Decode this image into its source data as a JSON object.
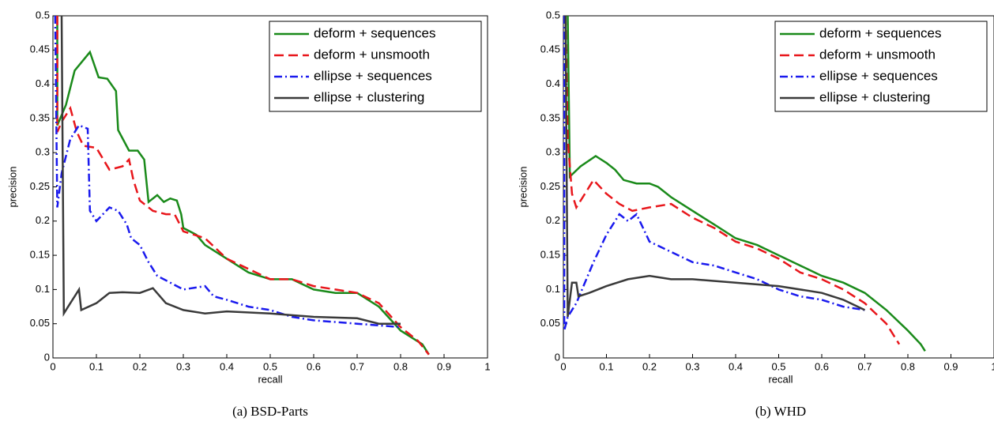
{
  "chart_data": [
    {
      "type": "line",
      "caption": "(a)  BSD-Parts",
      "xlabel": "recall",
      "ylabel": "precision",
      "xlim": [
        0,
        1
      ],
      "ylim": [
        0,
        0.5
      ],
      "xticks": [
        0,
        0.1,
        0.2,
        0.3,
        0.4,
        0.5,
        0.6,
        0.7,
        0.8,
        0.9,
        1
      ],
      "yticks": [
        0,
        0.05,
        0.1,
        0.15,
        0.2,
        0.25,
        0.3,
        0.35,
        0.4,
        0.45,
        0.5
      ],
      "legend": "upper right",
      "series": [
        {
          "name": "deform + sequences",
          "color": "#1a8a1a",
          "dash": "solid",
          "x": [
            0.01,
            0.01,
            0.03,
            0.05,
            0.085,
            0.105,
            0.125,
            0.145,
            0.15,
            0.175,
            0.195,
            0.21,
            0.22,
            0.24,
            0.255,
            0.27,
            0.285,
            0.295,
            0.3,
            0.33,
            0.35,
            0.4,
            0.45,
            0.5,
            0.55,
            0.6,
            0.65,
            0.7,
            0.75,
            0.8,
            0.85,
            0.865
          ],
          "values": [
            0.5,
            0.34,
            0.37,
            0.42,
            0.447,
            0.41,
            0.408,
            0.39,
            0.333,
            0.303,
            0.303,
            0.29,
            0.228,
            0.238,
            0.228,
            0.233,
            0.23,
            0.21,
            0.19,
            0.18,
            0.165,
            0.145,
            0.125,
            0.115,
            0.115,
            0.1,
            0.095,
            0.095,
            0.075,
            0.04,
            0.02,
            0.005
          ]
        },
        {
          "name": "deform + unsmooth",
          "color": "#e8161b",
          "dash": "dashed",
          "x": [
            0.01,
            0.01,
            0.02,
            0.04,
            0.055,
            0.07,
            0.1,
            0.13,
            0.16,
            0.175,
            0.185,
            0.2,
            0.23,
            0.26,
            0.28,
            0.3,
            0.35,
            0.4,
            0.45,
            0.5,
            0.55,
            0.6,
            0.65,
            0.7,
            0.75,
            0.8,
            0.84,
            0.865
          ],
          "values": [
            0.5,
            0.33,
            0.345,
            0.365,
            0.33,
            0.31,
            0.307,
            0.275,
            0.28,
            0.29,
            0.26,
            0.23,
            0.215,
            0.21,
            0.21,
            0.185,
            0.175,
            0.145,
            0.13,
            0.115,
            0.115,
            0.105,
            0.1,
            0.095,
            0.08,
            0.045,
            0.025,
            0.005
          ]
        },
        {
          "name": "ellipse + sequences",
          "color": "#1a1aee",
          "dash": "dashdot",
          "x": [
            0.005,
            0.01,
            0.02,
            0.04,
            0.06,
            0.08,
            0.085,
            0.1,
            0.13,
            0.15,
            0.17,
            0.18,
            0.2,
            0.22,
            0.24,
            0.27,
            0.3,
            0.35,
            0.37,
            0.4,
            0.45,
            0.5,
            0.55,
            0.6,
            0.7,
            0.8
          ],
          "values": [
            0.5,
            0.22,
            0.27,
            0.32,
            0.34,
            0.335,
            0.215,
            0.2,
            0.22,
            0.215,
            0.195,
            0.175,
            0.165,
            0.14,
            0.12,
            0.11,
            0.1,
            0.105,
            0.09,
            0.085,
            0.075,
            0.07,
            0.06,
            0.055,
            0.05,
            0.045
          ]
        },
        {
          "name": "ellipse + clustering",
          "color": "#3a3a3a",
          "dash": "solid",
          "x": [
            0.02,
            0.025,
            0.04,
            0.06,
            0.065,
            0.1,
            0.13,
            0.16,
            0.2,
            0.23,
            0.26,
            0.3,
            0.35,
            0.4,
            0.5,
            0.6,
            0.7,
            0.75,
            0.8
          ],
          "values": [
            0.5,
            0.065,
            0.08,
            0.1,
            0.07,
            0.08,
            0.095,
            0.096,
            0.095,
            0.102,
            0.08,
            0.07,
            0.065,
            0.068,
            0.065,
            0.06,
            0.058,
            0.05,
            0.05
          ]
        }
      ]
    },
    {
      "type": "line",
      "caption": "(b)  WHD",
      "xlabel": "recall",
      "ylabel": "precision",
      "xlim": [
        0,
        1
      ],
      "ylim": [
        0,
        0.5
      ],
      "xticks": [
        0,
        0.1,
        0.2,
        0.3,
        0.4,
        0.5,
        0.6,
        0.7,
        0.8,
        0.9,
        1
      ],
      "yticks": [
        0,
        0.05,
        0.1,
        0.15,
        0.2,
        0.25,
        0.3,
        0.35,
        0.4,
        0.45,
        0.5
      ],
      "legend": "upper right",
      "series": [
        {
          "name": "deform + sequences",
          "color": "#1a8a1a",
          "dash": "solid",
          "x": [
            0.01,
            0.015,
            0.04,
            0.075,
            0.1,
            0.12,
            0.14,
            0.17,
            0.2,
            0.22,
            0.25,
            0.3,
            0.35,
            0.4,
            0.45,
            0.5,
            0.55,
            0.6,
            0.65,
            0.7,
            0.75,
            0.8,
            0.83,
            0.84
          ],
          "values": [
            0.5,
            0.265,
            0.28,
            0.295,
            0.285,
            0.275,
            0.26,
            0.255,
            0.255,
            0.25,
            0.235,
            0.215,
            0.195,
            0.175,
            0.165,
            0.15,
            0.135,
            0.12,
            0.11,
            0.095,
            0.07,
            0.04,
            0.02,
            0.01
          ]
        },
        {
          "name": "deform + unsmooth",
          "color": "#e8161b",
          "dash": "dashed",
          "x": [
            0.005,
            0.01,
            0.02,
            0.03,
            0.05,
            0.07,
            0.1,
            0.13,
            0.16,
            0.2,
            0.25,
            0.3,
            0.35,
            0.4,
            0.45,
            0.5,
            0.55,
            0.6,
            0.65,
            0.7,
            0.75,
            0.78
          ],
          "values": [
            0.5,
            0.32,
            0.24,
            0.22,
            0.24,
            0.26,
            0.24,
            0.225,
            0.215,
            0.22,
            0.225,
            0.205,
            0.19,
            0.17,
            0.16,
            0.145,
            0.125,
            0.115,
            0.1,
            0.08,
            0.05,
            0.02
          ]
        },
        {
          "name": "ellipse + sequences",
          "color": "#1a1aee",
          "dash": "dashdot",
          "x": [
            0.002,
            0.002,
            0.01,
            0.03,
            0.07,
            0.1,
            0.13,
            0.15,
            0.17,
            0.2,
            0.25,
            0.3,
            0.35,
            0.4,
            0.45,
            0.5,
            0.55,
            0.6,
            0.65,
            0.7
          ],
          "values": [
            0.5,
            0.04,
            0.06,
            0.08,
            0.14,
            0.18,
            0.21,
            0.2,
            0.21,
            0.17,
            0.155,
            0.14,
            0.135,
            0.125,
            0.115,
            0.1,
            0.09,
            0.085,
            0.075,
            0.07
          ]
        },
        {
          "name": "ellipse + clustering",
          "color": "#3a3a3a",
          "dash": "solid",
          "x": [
            0.005,
            0.01,
            0.02,
            0.03,
            0.035,
            0.06,
            0.1,
            0.15,
            0.2,
            0.25,
            0.3,
            0.4,
            0.5,
            0.6,
            0.65,
            0.7
          ],
          "values": [
            0.5,
            0.06,
            0.11,
            0.11,
            0.09,
            0.095,
            0.105,
            0.115,
            0.12,
            0.115,
            0.115,
            0.11,
            0.105,
            0.095,
            0.085,
            0.07
          ]
        }
      ]
    }
  ]
}
